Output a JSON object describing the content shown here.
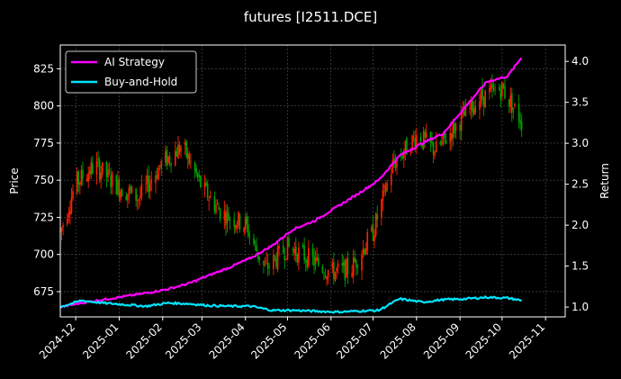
{
  "chart_data": {
    "type": "line",
    "title": "futures [I2511.DCE]",
    "xlabel": "",
    "ylabel_left": "Price",
    "ylabel_right": "Return",
    "x_ticks": [
      "2024-12",
      "2025-01",
      "2025-02",
      "2025-03",
      "2025-04",
      "2025-05",
      "2025-06",
      "2025-07",
      "2025-08",
      "2025-09",
      "2025-10",
      "2025-11"
    ],
    "y_left_ticks": [
      675,
      700,
      725,
      750,
      775,
      800,
      825
    ],
    "y_right_ticks": [
      1.0,
      1.5,
      2.0,
      2.5,
      3.0,
      3.5,
      4.0
    ],
    "y_left_lim": [
      658,
      841
    ],
    "y_right_lim": [
      0.88,
      4.2
    ],
    "x_lim": [
      "2024-11-20",
      "2025-11-15"
    ],
    "grid": true,
    "legend_position": "top-left",
    "colors": {
      "background": "#000000",
      "ai_strategy": "#ff00ff",
      "buy_and_hold": "#00e5ff",
      "candle_up": "#ff2200",
      "candle_down": "#00a000",
      "grid": "#555555",
      "axes": "#ffffff"
    },
    "series": [
      {
        "name": "AI Strategy",
        "axis": "right",
        "points": [
          [
            "2024-11-20",
            1.0
          ],
          [
            "2024-12-05",
            1.05
          ],
          [
            "2024-12-20",
            1.09
          ],
          [
            "2025-01-05",
            1.13
          ],
          [
            "2025-01-20",
            1.17
          ],
          [
            "2025-02-05",
            1.22
          ],
          [
            "2025-02-20",
            1.29
          ],
          [
            "2025-03-05",
            1.38
          ],
          [
            "2025-03-20",
            1.48
          ],
          [
            "2025-04-05",
            1.6
          ],
          [
            "2025-04-20",
            1.75
          ],
          [
            "2025-05-05",
            1.95
          ],
          [
            "2025-05-20",
            2.05
          ],
          [
            "2025-06-05",
            2.22
          ],
          [
            "2025-06-20",
            2.38
          ],
          [
            "2025-07-05",
            2.55
          ],
          [
            "2025-07-20",
            2.85
          ],
          [
            "2025-08-05",
            3.0
          ],
          [
            "2025-08-20",
            3.12
          ],
          [
            "2025-09-05",
            3.45
          ],
          [
            "2025-09-20",
            3.75
          ],
          [
            "2025-10-05",
            3.82
          ],
          [
            "2025-10-15",
            4.05
          ]
        ]
      },
      {
        "name": "Buy-and-Hold",
        "axis": "right",
        "points": [
          [
            "2024-11-20",
            1.0
          ],
          [
            "2024-12-05",
            1.08
          ],
          [
            "2024-12-20",
            1.05
          ],
          [
            "2025-01-05",
            1.03
          ],
          [
            "2025-01-20",
            1.01
          ],
          [
            "2025-02-05",
            1.05
          ],
          [
            "2025-02-20",
            1.04
          ],
          [
            "2025-03-05",
            1.02
          ],
          [
            "2025-03-20",
            1.01
          ],
          [
            "2025-04-05",
            1.01
          ],
          [
            "2025-04-20",
            0.96
          ],
          [
            "2025-05-05",
            0.96
          ],
          [
            "2025-05-20",
            0.95
          ],
          [
            "2025-06-05",
            0.94
          ],
          [
            "2025-06-20",
            0.95
          ],
          [
            "2025-07-05",
            0.96
          ],
          [
            "2025-07-20",
            1.1
          ],
          [
            "2025-08-05",
            1.06
          ],
          [
            "2025-08-20",
            1.09
          ],
          [
            "2025-09-05",
            1.1
          ],
          [
            "2025-09-20",
            1.12
          ],
          [
            "2025-10-05",
            1.11
          ],
          [
            "2025-10-15",
            1.08
          ]
        ]
      }
    ],
    "price_trend": [
      [
        "2024-11-20",
        715
      ],
      [
        "2024-12-01",
        748
      ],
      [
        "2024-12-15",
        760
      ],
      [
        "2025-01-01",
        745
      ],
      [
        "2025-01-15",
        738
      ],
      [
        "2025-02-01",
        762
      ],
      [
        "2025-02-15",
        773
      ],
      [
        "2025-03-01",
        745
      ],
      [
        "2025-03-15",
        728
      ],
      [
        "2025-04-01",
        720
      ],
      [
        "2025-04-15",
        690
      ],
      [
        "2025-05-01",
        705
      ],
      [
        "2025-05-15",
        698
      ],
      [
        "2025-06-01",
        688
      ],
      [
        "2025-06-15",
        690
      ],
      [
        "2025-07-01",
        715
      ],
      [
        "2025-07-15",
        760
      ],
      [
        "2025-08-01",
        780
      ],
      [
        "2025-08-15",
        770
      ],
      [
        "2025-09-01",
        790
      ],
      [
        "2025-09-15",
        805
      ],
      [
        "2025-10-01",
        812
      ],
      [
        "2025-10-15",
        790
      ]
    ]
  }
}
